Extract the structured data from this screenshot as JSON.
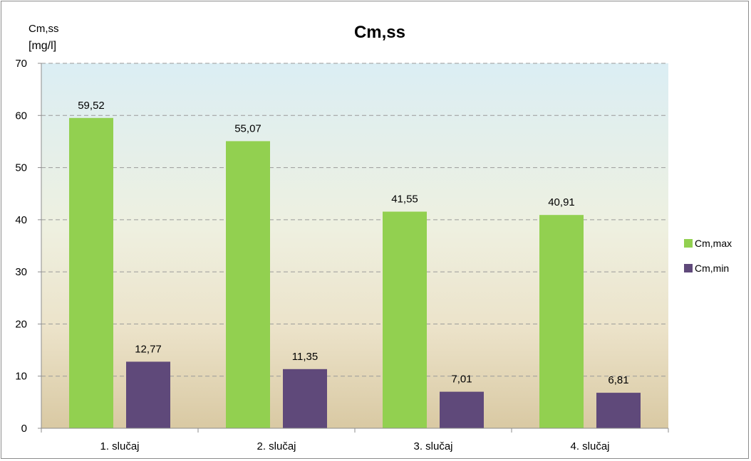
{
  "chart_data": {
    "type": "bar",
    "title": "Cm,ss",
    "ylabel_line1": "Cm,ss",
    "ylabel_line2": "[mg/l]",
    "xlabel": "",
    "ylim": [
      0,
      70
    ],
    "yticks": [
      0,
      10,
      20,
      30,
      40,
      50,
      60,
      70
    ],
    "grid": true,
    "legend_position": "right",
    "categories": [
      "1. slučaj",
      "2. slučaj",
      "3. slučaj",
      "4. slučaj"
    ],
    "series": [
      {
        "name": "Cm,max",
        "color": "#92d050",
        "values": [
          59.52,
          55.07,
          41.55,
          40.91
        ],
        "labels": [
          "59,52",
          "55,07",
          "41,55",
          "40,91"
        ]
      },
      {
        "name": "Cm,min",
        "color": "#5f497a",
        "values": [
          12.77,
          11.35,
          7.01,
          6.81
        ],
        "labels": [
          "12,77",
          "11,35",
          "7,01",
          "6,81"
        ]
      }
    ]
  }
}
